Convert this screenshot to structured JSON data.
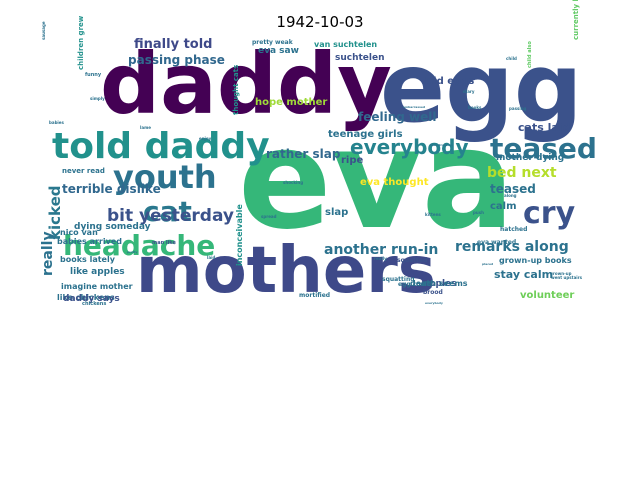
{
  "chart_data": {
    "type": "wordcloud",
    "title": "1942-10-03",
    "words": [
      {
        "text": "eva",
        "weight": 100,
        "color": "#35b779"
      },
      {
        "text": "daddy",
        "weight": 84,
        "color": "#440154"
      },
      {
        "text": "egg",
        "weight": 78,
        "color": "#3b528b"
      },
      {
        "text": "mothers",
        "weight": 62,
        "color": "#3e4989"
      },
      {
        "text": "told daddy",
        "weight": 36,
        "color": "#21918c"
      },
      {
        "text": "youth",
        "weight": 30,
        "color": "#2c728e"
      },
      {
        "text": "headache",
        "weight": 28,
        "color": "#35b779"
      },
      {
        "text": "cry",
        "weight": 28,
        "color": "#3b528b"
      },
      {
        "text": "teased",
        "weight": 26,
        "color": "#2c728e"
      },
      {
        "text": "cat",
        "weight": 26,
        "color": "#2a788e"
      },
      {
        "text": "everybody",
        "weight": 20,
        "color": "#25838e"
      },
      {
        "text": "bit yesterday",
        "weight": 16,
        "color": "#3b528b"
      },
      {
        "text": "kicked",
        "weight": 16,
        "color": "#2a788e"
      },
      {
        "text": "really",
        "weight": 14,
        "color": "#2c728e"
      },
      {
        "text": "another run-in",
        "weight": 14,
        "color": "#2c728e"
      },
      {
        "text": "remarks along",
        "weight": 13,
        "color": "#2c728e"
      },
      {
        "text": "bed next",
        "weight": 13,
        "color": "#b5de2b"
      },
      {
        "text": "finally told",
        "weight": 13,
        "color": "#3e4989"
      },
      {
        "text": "teased",
        "weight": 12,
        "color": "#2c728e"
      },
      {
        "text": "passing phase",
        "weight": 12,
        "color": "#31688e"
      },
      {
        "text": "terrible dislike",
        "weight": 12,
        "color": "#31688e"
      },
      {
        "text": "feeling well",
        "weight": 12,
        "color": "#31688e"
      },
      {
        "text": "rather slap",
        "weight": 12,
        "color": "#31688e"
      },
      {
        "text": "laid eggs",
        "weight": 10,
        "color": "#3b528b"
      },
      {
        "text": "cats laid",
        "weight": 10,
        "color": "#3b528b"
      },
      {
        "text": "hope mother",
        "weight": 10,
        "color": "#a0da39"
      },
      {
        "text": "teenage girls",
        "weight": 10,
        "color": "#2c728e"
      },
      {
        "text": "ripe",
        "weight": 10,
        "color": "#3b528b"
      },
      {
        "text": "eva thought",
        "weight": 10,
        "color": "#fde725"
      },
      {
        "text": "slap",
        "weight": 10,
        "color": "#2c728e"
      },
      {
        "text": "calm",
        "weight": 10,
        "color": "#2c728e"
      },
      {
        "text": "stay calm",
        "weight": 10,
        "color": "#2c728e"
      },
      {
        "text": "volunteer",
        "weight": 10,
        "color": "#6ece58"
      },
      {
        "text": "eva saw",
        "weight": 9,
        "color": "#2c728e"
      },
      {
        "text": "suchtelen",
        "weight": 9,
        "color": "#3b528b"
      },
      {
        "text": "van suchtelen",
        "weight": 8,
        "color": "#21918c"
      },
      {
        "text": "mother dying",
        "weight": 9,
        "color": "#2c728e"
      },
      {
        "text": "dying someday",
        "weight": 9,
        "color": "#2c728e"
      },
      {
        "text": "nico van",
        "weight": 8,
        "color": "#2c728e"
      },
      {
        "text": "babies arrived",
        "weight": 8,
        "color": "#2c728e"
      },
      {
        "text": "like apples",
        "weight": 9,
        "color": "#2c728e"
      },
      {
        "text": "books lately",
        "weight": 8,
        "color": "#2c728e"
      },
      {
        "text": "like chickens",
        "weight": 8,
        "color": "#2c728e"
      },
      {
        "text": "imagine mother",
        "weight": 8,
        "color": "#2c728e"
      },
      {
        "text": "daddy says",
        "weight": 9,
        "color": "#3b528b"
      },
      {
        "text": "grown-up books",
        "weight": 8,
        "color": "#2c728e"
      },
      {
        "text": "apples",
        "weight": 9,
        "color": "#3b528b"
      },
      {
        "text": "death seems",
        "weight": 8,
        "color": "#2c728e"
      },
      {
        "text": "never read",
        "weight": 7,
        "color": "#2c728e"
      },
      {
        "text": "thought cats",
        "weight": 7,
        "color": "#21918c"
      },
      {
        "text": "inconceivable",
        "weight": 8,
        "color": "#21918c"
      },
      {
        "text": "children grew",
        "weight": 7,
        "color": "#21918c"
      },
      {
        "text": "currently keeping",
        "weight": 7,
        "color": "#5ec962"
      },
      {
        "text": "hatched",
        "weight": 6,
        "color": "#2c728e"
      },
      {
        "text": "egg could",
        "weight": 6,
        "color": "#2c728e"
      },
      {
        "text": "brood",
        "weight": 6,
        "color": "#3b528b"
      },
      {
        "text": "eva wanted",
        "weight": 6,
        "color": "#2c728e"
      },
      {
        "text": "mortified",
        "weight": 6,
        "color": "#2c728e"
      },
      {
        "text": "squatted",
        "weight": 6,
        "color": "#3b528b"
      },
      {
        "text": "squatting",
        "weight": 6,
        "color": "#2c728e"
      },
      {
        "text": "pretty weak",
        "weight": 6,
        "color": "#2c728e"
      },
      {
        "text": "funny",
        "weight": 5,
        "color": "#2c728e"
      },
      {
        "text": "man like",
        "weight": 5,
        "color": "#3b528b"
      },
      {
        "text": "chickens",
        "weight": 5,
        "color": "#2c728e"
      },
      {
        "text": "child also",
        "weight": 5,
        "color": "#5ec962"
      },
      {
        "text": "grown-up",
        "weight": 4,
        "color": "#2c728e"
      },
      {
        "text": "passing",
        "weight": 4,
        "color": "#2c728e"
      },
      {
        "text": "diary",
        "weight": 4,
        "color": "#2c728e"
      },
      {
        "text": "books",
        "weight": 4,
        "color": "#2c728e"
      },
      {
        "text": "child",
        "weight": 4,
        "color": "#2c728e"
      },
      {
        "text": "sausage",
        "weight": 4,
        "color": "#2c728e"
      },
      {
        "text": "spread",
        "weight": 4,
        "color": "#2c728e"
      },
      {
        "text": "shocking",
        "weight": 4,
        "color": "#2c728e"
      },
      {
        "text": "along",
        "weight": 4,
        "color": "#2c728e"
      },
      {
        "text": "push",
        "weight": 4,
        "color": "#2c728e"
      },
      {
        "text": "really",
        "weight": 4,
        "color": "#2c728e"
      },
      {
        "text": "kittens",
        "weight": 4,
        "color": "#2c728e"
      },
      {
        "text": "enjoy",
        "weight": 4,
        "color": "#2c728e"
      },
      {
        "text": "lame",
        "weight": 4,
        "color": "#2c728e"
      },
      {
        "text": "babies",
        "weight": 4,
        "color": "#2c728e"
      },
      {
        "text": "simply",
        "weight": 4,
        "color": "#2c728e"
      },
      {
        "text": "laid",
        "weight": 4,
        "color": "#2c728e"
      },
      {
        "text": "went upstairs",
        "weight": 4,
        "color": "#2c728e"
      },
      {
        "text": "everybody",
        "weight": 3,
        "color": "#2c728e"
      },
      {
        "text": "pretty",
        "weight": 3,
        "color": "#2c728e"
      },
      {
        "text": "placed",
        "weight": 3,
        "color": "#2c728e"
      },
      {
        "text": "menstruation",
        "weight": 3,
        "color": "#2c728e"
      },
      {
        "text": "embarrassed",
        "weight": 3,
        "color": "#2c728e"
      }
    ]
  }
}
